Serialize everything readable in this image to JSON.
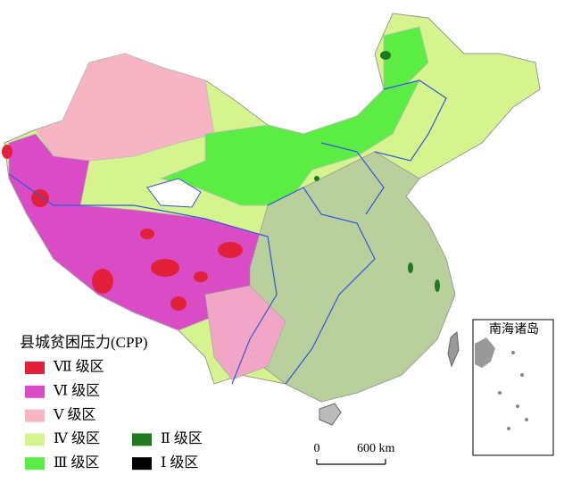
{
  "legend": {
    "title": "县城贫困压力(CPP)",
    "items": [
      {
        "label": "Ⅶ 级区",
        "color": "#e3203a"
      },
      {
        "label": "Ⅵ 级区",
        "color": "#d94cc6"
      },
      {
        "label": "Ⅴ 级区",
        "color": "#f7b4c2"
      },
      {
        "label": "Ⅳ 级区",
        "color": "#d6f48e"
      },
      {
        "label": "Ⅲ 级区",
        "color": "#5ced45"
      },
      {
        "label": "Ⅱ 级区",
        "color": "#1f7a1f"
      },
      {
        "label": "Ⅰ 级区",
        "color": "#000000"
      }
    ]
  },
  "scale_bar": {
    "start": "0",
    "end": "600 km"
  },
  "inset": {
    "title": "南海诸岛"
  }
}
